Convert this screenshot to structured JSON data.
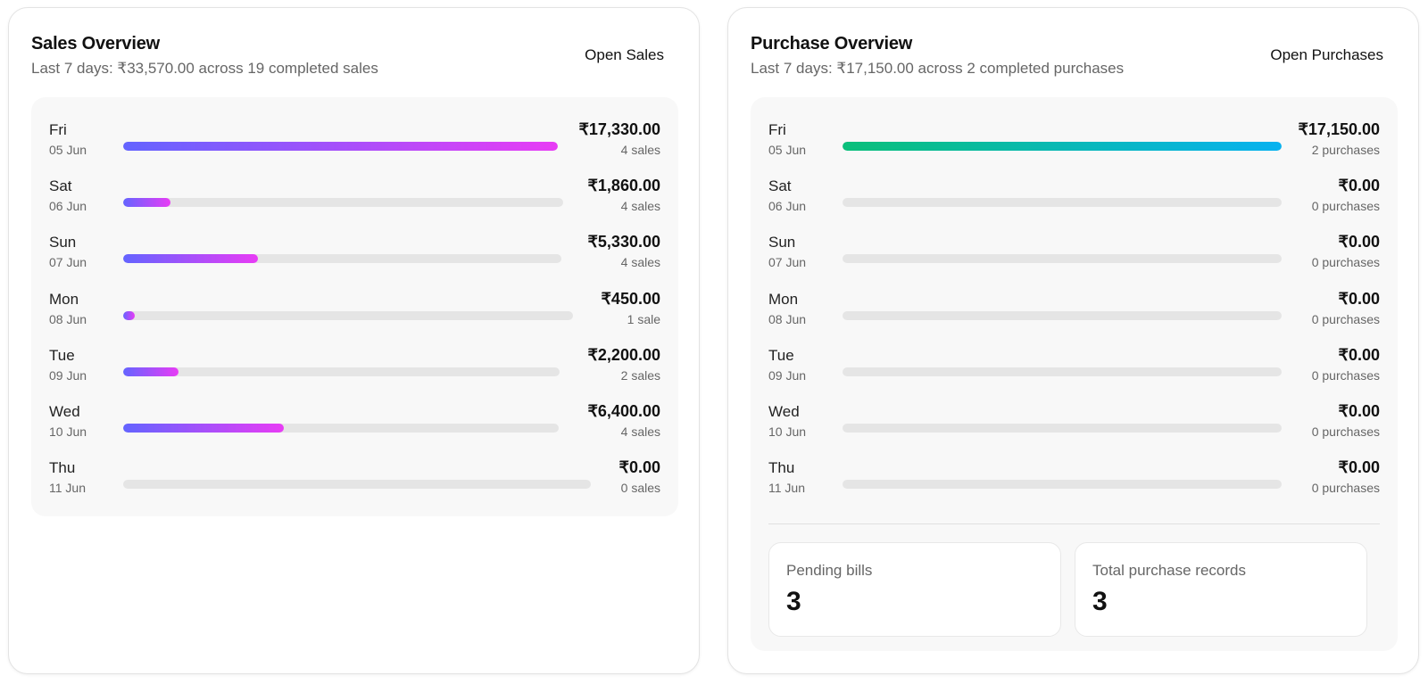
{
  "sales": {
    "title": "Sales Overview",
    "subtitle": "Last 7 days: ₹33,570.00 across 19 completed sales",
    "open_label": "Open Sales",
    "rows": [
      {
        "day": "Fri",
        "date": "05 Jun",
        "amount": "₹17,330.00",
        "count": "4 sales",
        "fill": 1.0
      },
      {
        "day": "Sat",
        "date": "06 Jun",
        "amount": "₹1,860.00",
        "count": "4 sales",
        "fill": 0.107
      },
      {
        "day": "Sun",
        "date": "07 Jun",
        "amount": "₹5,330.00",
        "count": "4 sales",
        "fill": 0.308
      },
      {
        "day": "Mon",
        "date": "08 Jun",
        "amount": "₹450.00",
        "count": "1 sale",
        "fill": 0.026
      },
      {
        "day": "Tue",
        "date": "09 Jun",
        "amount": "₹2,200.00",
        "count": "2 sales",
        "fill": 0.127
      },
      {
        "day": "Wed",
        "date": "10 Jun",
        "amount": "₹6,400.00",
        "count": "4 sales",
        "fill": 0.369
      },
      {
        "day": "Thu",
        "date": "11 Jun",
        "amount": "₹0.00",
        "count": "0 sales",
        "fill": 0.0
      }
    ]
  },
  "purchases": {
    "title": "Purchase Overview",
    "subtitle": "Last 7 days: ₹17,150.00 across 2 completed purchases",
    "open_label": "Open Purchases",
    "rows": [
      {
        "day": "Fri",
        "date": "05 Jun",
        "amount": "₹17,150.00",
        "count": "2 purchases",
        "fill": 1.0
      },
      {
        "day": "Sat",
        "date": "06 Jun",
        "amount": "₹0.00",
        "count": "0 purchases",
        "fill": 0.0
      },
      {
        "day": "Sun",
        "date": "07 Jun",
        "amount": "₹0.00",
        "count": "0 purchases",
        "fill": 0.0
      },
      {
        "day": "Mon",
        "date": "08 Jun",
        "amount": "₹0.00",
        "count": "0 purchases",
        "fill": 0.0
      },
      {
        "day": "Tue",
        "date": "09 Jun",
        "amount": "₹0.00",
        "count": "0 purchases",
        "fill": 0.0
      },
      {
        "day": "Wed",
        "date": "10 Jun",
        "amount": "₹0.00",
        "count": "0 purchases",
        "fill": 0.0
      },
      {
        "day": "Thu",
        "date": "11 Jun",
        "amount": "₹0.00",
        "count": "0 purchases",
        "fill": 0.0
      }
    ],
    "stats": [
      {
        "label": "Pending bills",
        "value": "3"
      },
      {
        "label": "Total purchase records",
        "value": "3"
      }
    ]
  },
  "colors": {
    "sales_gradient": [
      "#6464ff",
      "#e83cf5"
    ],
    "purchase_gradient": [
      "#0bbf7a",
      "#07b2f0"
    ],
    "track": "#e5e5e5"
  }
}
